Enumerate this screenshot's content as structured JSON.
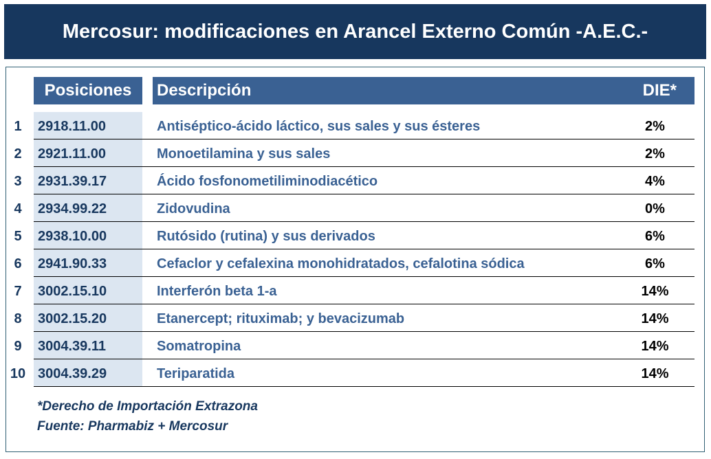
{
  "title": "Mercosur: modificaciones en Arancel Externo Común -A.E.C.-",
  "headers": {
    "positions": "Posiciones",
    "description": "Descripción",
    "die": "DIE*"
  },
  "rows": [
    {
      "n": "1",
      "pos": "2918.11.00",
      "desc": "Antiséptico-ácido láctico, sus sales y sus ésteres",
      "die": "2%"
    },
    {
      "n": "2",
      "pos": "2921.11.00",
      "desc": "Monoetilamina y sus sales",
      "die": "2%"
    },
    {
      "n": "3",
      "pos": "2931.39.17",
      "desc": "Ácido fosfonometiliminodiacético",
      "die": "4%"
    },
    {
      "n": "4",
      "pos": "2934.99.22",
      "desc": "Zidovudina",
      "die": "0%"
    },
    {
      "n": "5",
      "pos": "2938.10.00",
      "desc": "Rutósido (rutina) y sus derivados",
      "die": "6%"
    },
    {
      "n": "6",
      "pos": "2941.90.33",
      "desc": "Cefaclor y cefalexina monohidratados, cefalotina sódica",
      "die": "6%"
    },
    {
      "n": "7",
      "pos": "3002.15.10",
      "desc": "Interferón beta 1-a",
      "die": "14%"
    },
    {
      "n": "8",
      "pos": "3002.15.20",
      "desc": "Etanercept; rituximab; y bevacizumab",
      "die": "14%"
    },
    {
      "n": "9",
      "pos": "3004.39.11",
      "desc": "Somatropina",
      "die": "14%"
    },
    {
      "n": "10",
      "pos": "3004.39.29",
      "desc": "Teriparatida",
      "die": "14%"
    }
  ],
  "footnotes": [
    "*Derecho de Importación Extrazona",
    "Fuente: Pharmabiz + Mercosur"
  ],
  "colors": {
    "title_bg": "#17375e",
    "header_bg": "#3a6193",
    "position_bg": "#dce6f1"
  }
}
